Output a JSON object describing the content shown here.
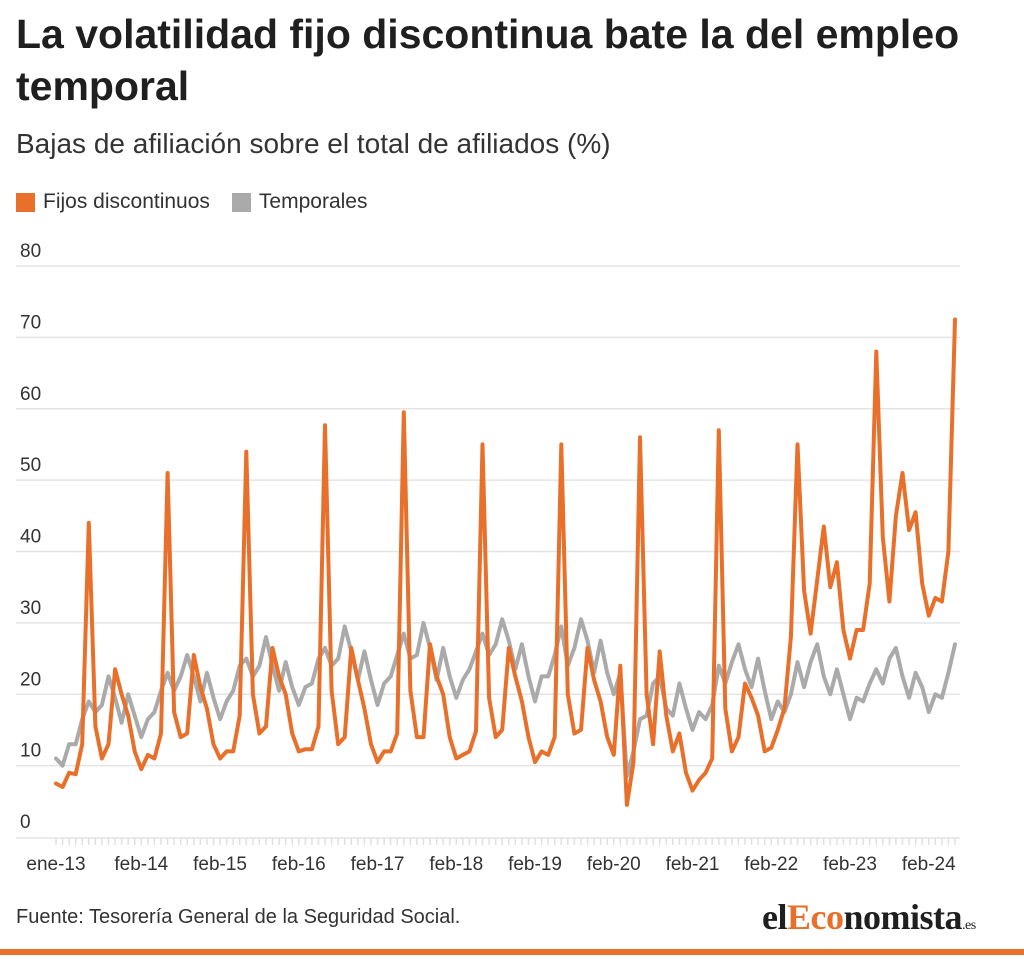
{
  "title": "La volatilidad fijo discontinua bate la del empleo temporal",
  "subtitle": "Bajas de afiliación sobre el total de afiliados (%)",
  "legend": [
    {
      "label": "Fijos discontinuos",
      "color": "#e8702a"
    },
    {
      "label": "Temporales",
      "color": "#aaaaaa"
    }
  ],
  "footer": {
    "source": "Fuente: Tesorería General de la Seguridad Social.",
    "logo_prefix": "el",
    "logo_accent": "Eco",
    "logo_suffix": "nomista",
    "logo_domain": ".es"
  },
  "chart_data": {
    "type": "line",
    "ylim": [
      0,
      80
    ],
    "yticks": [
      0,
      10,
      20,
      30,
      40,
      50,
      60,
      70,
      80
    ],
    "grid": true,
    "legend_position": "top-left",
    "x_start": "ene-13",
    "x_labels": [
      "ene-13",
      "feb-14",
      "feb-15",
      "feb-16",
      "feb-17",
      "feb-18",
      "feb-19",
      "feb-20",
      "feb-21",
      "feb-22",
      "feb-23",
      "feb-24"
    ],
    "x_label_index": [
      0,
      13,
      25,
      37,
      49,
      61,
      73,
      85,
      97,
      109,
      121,
      133
    ],
    "series": [
      {
        "name": "Fijos discontinuos",
        "color": "#e8702a",
        "values": [
          7.5,
          7,
          9,
          8.8,
          13,
          44,
          15.5,
          11,
          13,
          23.5,
          20,
          17,
          12,
          9.5,
          11.5,
          11,
          14.5,
          51,
          17.5,
          14,
          14.5,
          25.5,
          21,
          18,
          13,
          11,
          12,
          12,
          17,
          54,
          20,
          14.5,
          15.5,
          26.5,
          22.5,
          20,
          14.5,
          12,
          12.3,
          12.3,
          15.5,
          57.7,
          20.5,
          13,
          14,
          26.5,
          22,
          18,
          13,
          10.5,
          12,
          12,
          14.5,
          59.5,
          20.5,
          14,
          14,
          27,
          22.5,
          20,
          14,
          11,
          11.5,
          12,
          14.8,
          55,
          19.5,
          14,
          15,
          26.5,
          22.5,
          19,
          14,
          10.5,
          12,
          11.5,
          14,
          55,
          20,
          14.5,
          15,
          26.5,
          22,
          19,
          14,
          11.5,
          24,
          4.5,
          10.5,
          56,
          20,
          13,
          26,
          17,
          12,
          14.5,
          9,
          6.5,
          8,
          9,
          11,
          57,
          18,
          12,
          14,
          21.5,
          19.5,
          17,
          12,
          12.5,
          15,
          18,
          28,
          55,
          34.5,
          28.5,
          36,
          43.5,
          35,
          38.5,
          29,
          25,
          29,
          29,
          35.5,
          68,
          42,
          33,
          45,
          51,
          43,
          45.5,
          35.5,
          31,
          33.5,
          33,
          40,
          72.5
        ]
      },
      {
        "name": "Temporales",
        "color": "#aaaaaa",
        "values": [
          11,
          10,
          13,
          13,
          16.5,
          19,
          17.5,
          18.5,
          22.5,
          19.5,
          16,
          20,
          17,
          14,
          16.5,
          17.5,
          20.5,
          23,
          20.5,
          22.5,
          25.5,
          22.5,
          19,
          23,
          19.5,
          16.5,
          19,
          20.5,
          24,
          25,
          22.5,
          24,
          28,
          24,
          20.5,
          24.5,
          21,
          18.5,
          21,
          21.5,
          25,
          26.5,
          24,
          25,
          29.5,
          26,
          22,
          26,
          22,
          18.5,
          21.5,
          22.5,
          25.5,
          28.5,
          25,
          25.5,
          30,
          26.5,
          22,
          26.5,
          22.5,
          19.5,
          22,
          23.5,
          26,
          28.5,
          25.5,
          27,
          30.5,
          27.5,
          23.5,
          27,
          22.5,
          19,
          22.5,
          22.5,
          25.5,
          29.5,
          24,
          26.5,
          30.5,
          27.5,
          23,
          27.5,
          23,
          20,
          23,
          8.5,
          12,
          16.5,
          17,
          21.5,
          22.5,
          18,
          17,
          21.5,
          18,
          15,
          17.5,
          16.5,
          18.5,
          24,
          21.5,
          24.5,
          27,
          23.5,
          21,
          25,
          20.5,
          16.5,
          19,
          17.5,
          20,
          24.5,
          21,
          24.5,
          27,
          22.5,
          20,
          23.5,
          20,
          16.5,
          19.5,
          19,
          21.5,
          23.5,
          21.5,
          25,
          26.5,
          22.5,
          19.5,
          23,
          21,
          17.5,
          20,
          19.5,
          23,
          27
        ]
      }
    ]
  }
}
